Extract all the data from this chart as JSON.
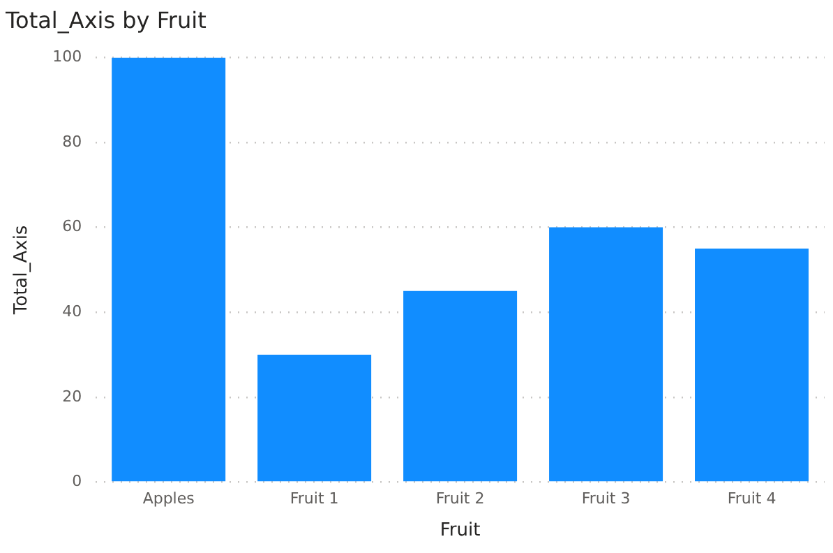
{
  "chart_data": {
    "type": "bar",
    "title": "Total_Axis by Fruit",
    "xlabel": "Fruit",
    "ylabel": "Total_Axis",
    "categories": [
      "Apples",
      "Fruit 1",
      "Fruit 2",
      "Fruit 3",
      "Fruit 4"
    ],
    "values": [
      100,
      30,
      45,
      60,
      55
    ],
    "color": "#118dff",
    "ylim": [
      0,
      100
    ],
    "yticks": [
      0,
      20,
      40,
      60,
      80,
      100
    ],
    "grid": "y"
  }
}
